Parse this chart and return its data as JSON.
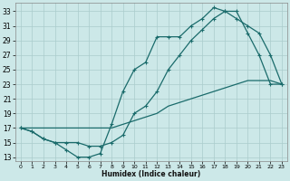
{
  "xlabel": "Humidex (Indice chaleur)",
  "bg_color": "#cce8e8",
  "grid_color": "#aacccc",
  "line_color": "#1a6b6b",
  "x_ticks": [
    0,
    1,
    2,
    3,
    4,
    5,
    6,
    7,
    8,
    9,
    10,
    11,
    12,
    13,
    14,
    15,
    16,
    17,
    18,
    19,
    20,
    21,
    22,
    23
  ],
  "y_ticks": [
    13,
    15,
    17,
    19,
    21,
    23,
    25,
    27,
    29,
    31,
    33
  ],
  "ylim": [
    12.5,
    34.2
  ],
  "xlim": [
    -0.5,
    23.5
  ],
  "curve1_x": [
    0,
    1,
    2,
    3,
    4,
    5,
    6,
    7,
    8,
    9,
    10,
    11,
    12,
    13,
    14,
    15,
    16,
    17,
    18,
    19,
    20,
    21,
    22,
    23
  ],
  "curve1_y": [
    17,
    16.5,
    15.5,
    15,
    14,
    13,
    13,
    13.5,
    17.5,
    22,
    25,
    26,
    29.5,
    29.5,
    29.5,
    31,
    32,
    33.5,
    33,
    33,
    30,
    27,
    23,
    23
  ],
  "curve2_x": [
    0,
    1,
    2,
    3,
    4,
    5,
    6,
    7,
    8,
    9,
    10,
    11,
    12,
    13,
    14,
    15,
    16,
    17,
    18,
    19,
    20,
    21,
    22,
    23
  ],
  "curve2_y": [
    17,
    16.5,
    15.5,
    15,
    15,
    15,
    14.5,
    14.5,
    15,
    16,
    19,
    20,
    22,
    25,
    27,
    29,
    30.5,
    32,
    33,
    32,
    31,
    30,
    27,
    23
  ],
  "curve3_x": [
    0,
    1,
    2,
    3,
    4,
    5,
    6,
    7,
    8,
    9,
    10,
    11,
    12,
    13,
    14,
    15,
    16,
    17,
    18,
    19,
    20,
    21,
    22,
    23
  ],
  "curve3_y": [
    17,
    17,
    17,
    17,
    17,
    17,
    17,
    17,
    17,
    17.5,
    18,
    18.5,
    19,
    20,
    20.5,
    21,
    21.5,
    22,
    22.5,
    23,
    23.5,
    23.5,
    23.5,
    23
  ],
  "marker_x1": [
    0,
    4,
    5,
    6,
    7,
    8,
    9,
    10,
    11,
    12,
    13,
    14,
    15,
    16,
    17,
    18,
    19,
    20,
    21,
    22,
    23
  ],
  "marker_x2": [
    0,
    5,
    6,
    7,
    8,
    9,
    10,
    11,
    12,
    13,
    14,
    15,
    16,
    17,
    18,
    19,
    20,
    23
  ]
}
